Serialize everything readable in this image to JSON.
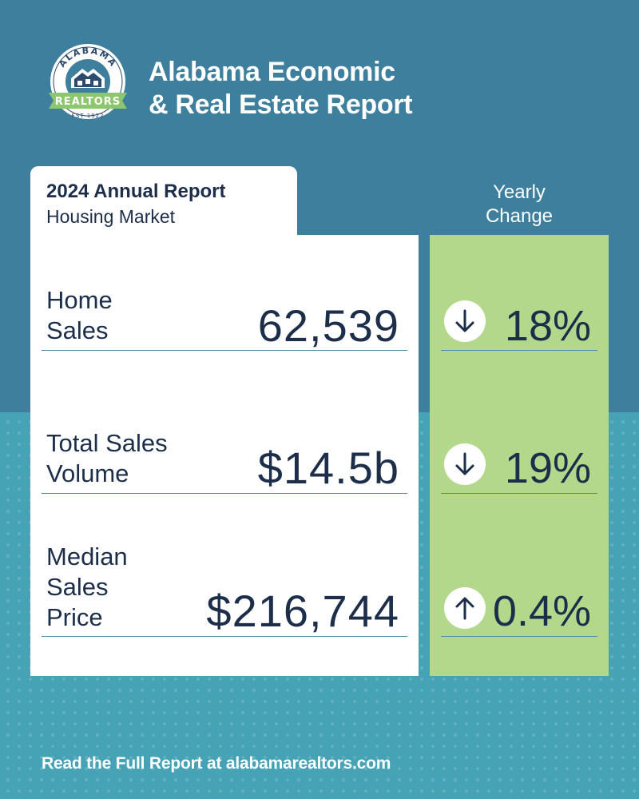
{
  "logo": {
    "top_text": "ALABAMA",
    "banner_text": "REALTORS",
    "est_text": "EST 1922",
    "icon": "house-icon"
  },
  "header": {
    "title_line1": "Alabama Economic",
    "title_line2": "& Real Estate Report"
  },
  "card": {
    "title": "2024 Annual Report",
    "subtitle": "Housing Market"
  },
  "yearly_change": {
    "header_line1": "Yearly",
    "header_line2": "Change"
  },
  "metrics": [
    {
      "label_lines": [
        "Home",
        "Sales"
      ],
      "value": "62,539",
      "change": "18%",
      "direction": "down",
      "icon": "arrow-down-icon"
    },
    {
      "label_lines": [
        "Total Sales",
        "Volume"
      ],
      "value": "$14.5b",
      "change": "19%",
      "direction": "down",
      "icon": "arrow-down-icon"
    },
    {
      "label_lines": [
        "Median",
        "Sales",
        "Price"
      ],
      "value": "$216,744",
      "change": "0.4%",
      "direction": "up",
      "icon": "arrow-up-icon"
    }
  ],
  "footer": {
    "text": "Read the Full Report at alabamarealtors.com"
  },
  "colors": {
    "background_top": "#3f7f9e",
    "background_bottom": "#46a2b5",
    "green_column": "#b3d88c",
    "text_navy": "#1c2e4a"
  }
}
